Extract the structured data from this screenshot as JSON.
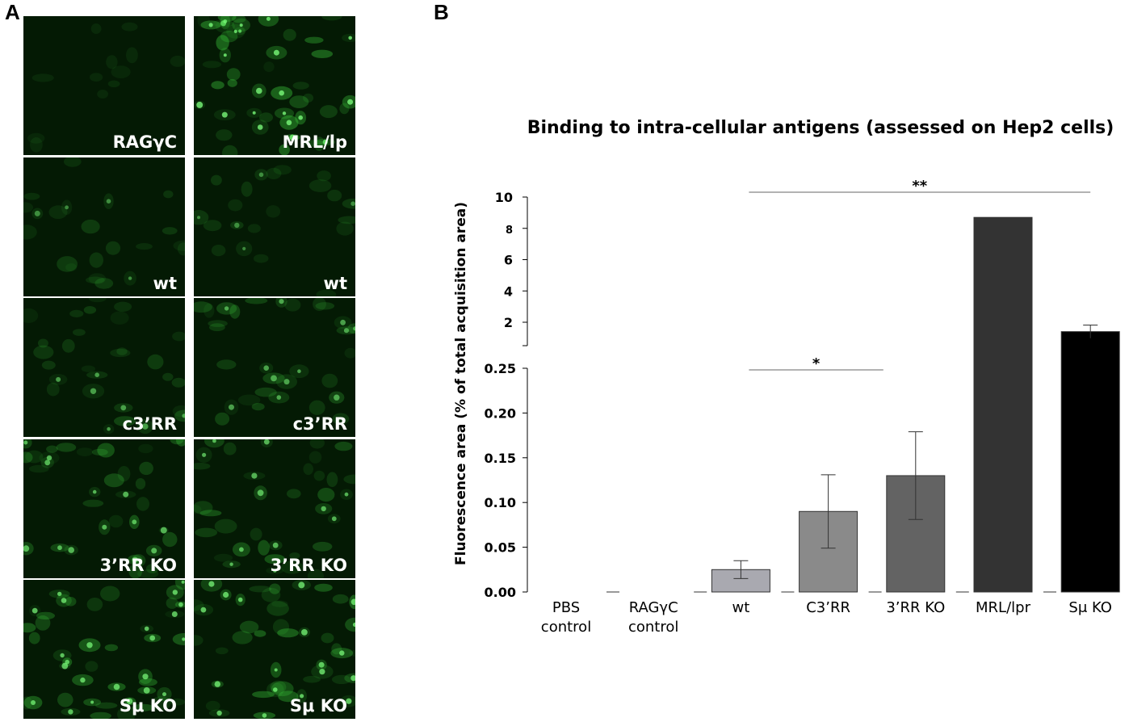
{
  "panels": {
    "left_letter": "A",
    "right_letter": "B"
  },
  "micrographs": {
    "left_column": [
      "RAGγC",
      "wt",
      "c3’RR",
      "3’RR KO",
      "Sμ KO"
    ],
    "right_column": [
      "MRL/lp",
      "wt",
      "c3’RR",
      "3’RR KO",
      "Sμ KO"
    ],
    "brightness_left": [
      0.05,
      0.3,
      0.45,
      0.65,
      0.8
    ],
    "brightness_right": [
      0.95,
      0.28,
      0.5,
      0.65,
      0.85
    ],
    "fluorescence_color": "#3dcc3d"
  },
  "chart_data": {
    "type": "bar",
    "title": "Binding to intra-cellular antigens (assessed on Hep2 cells)",
    "ylabel": "Fluorescence area (% of total acquisition area)",
    "categories": [
      {
        "line1": "PBS",
        "line2": "control"
      },
      {
        "line1": "RAGγC",
        "line2": "control"
      },
      {
        "line1": "wt",
        "line2": ""
      },
      {
        "line1": "C3’RR",
        "line2": ""
      },
      {
        "line1": "3’RR KO",
        "line2": ""
      },
      {
        "line1": "MRL/lpr",
        "line2": ""
      },
      {
        "line1": "Sμ KO",
        "line2": ""
      }
    ],
    "values": [
      0,
      0,
      0.025,
      0.09,
      0.13,
      8.7,
      1.4
    ],
    "error": [
      0,
      0,
      0.01,
      0.041,
      0.049,
      0,
      0.42
    ],
    "colors": [
      "#ffffff",
      "#ffffff",
      "#a9a9b0",
      "#8a8a8a",
      "#636363",
      "#333333",
      "#000000"
    ],
    "axis_lower": {
      "range": [
        0,
        0.25
      ],
      "ticks": [
        "0.00",
        "0.05",
        "0.10",
        "0.15",
        "0.20",
        "0.25"
      ]
    },
    "axis_upper": {
      "range": [
        0,
        10
      ],
      "ticks": [
        "2",
        "4",
        "6",
        "8",
        "10"
      ]
    },
    "significance": [
      {
        "from": 2,
        "to": 4,
        "label": "*"
      },
      {
        "from": 2,
        "to": 6,
        "label": "**"
      }
    ],
    "grid": false
  }
}
